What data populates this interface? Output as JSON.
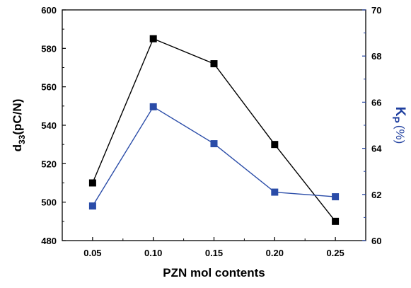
{
  "chart_data": {
    "type": "line",
    "x": [
      0.05,
      0.1,
      0.15,
      0.2,
      0.25
    ],
    "x_tick_labels": [
      "0.05",
      "0.10",
      "0.15",
      "0.20",
      "0.25"
    ],
    "xlabel": "PZN mol contents",
    "xlim": [
      0.025,
      0.275
    ],
    "y_left": {
      "label_main": "d",
      "label_sub": "33",
      "label_rest": "(pC/N)",
      "lim": [
        480,
        600
      ],
      "ticks": [
        "480",
        "500",
        "520",
        "540",
        "560",
        "580",
        "600"
      ],
      "color": "#000000"
    },
    "y_right": {
      "label_main": "K",
      "label_sub": "P",
      "label_rest": "(%)",
      "lim": [
        60,
        70
      ],
      "ticks": [
        "60",
        "62",
        "64",
        "66",
        "68",
        "70"
      ],
      "color": "#1f3f9f"
    },
    "series": [
      {
        "axis": "left",
        "color": "#000000",
        "marker": "square",
        "values": [
          510,
          585,
          572,
          530,
          490
        ]
      },
      {
        "axis": "right",
        "color": "#2a4ca8",
        "marker": "square",
        "values": [
          61.5,
          65.8,
          64.2,
          62.1,
          61.9
        ]
      }
    ],
    "grid": false,
    "legend": "none"
  }
}
